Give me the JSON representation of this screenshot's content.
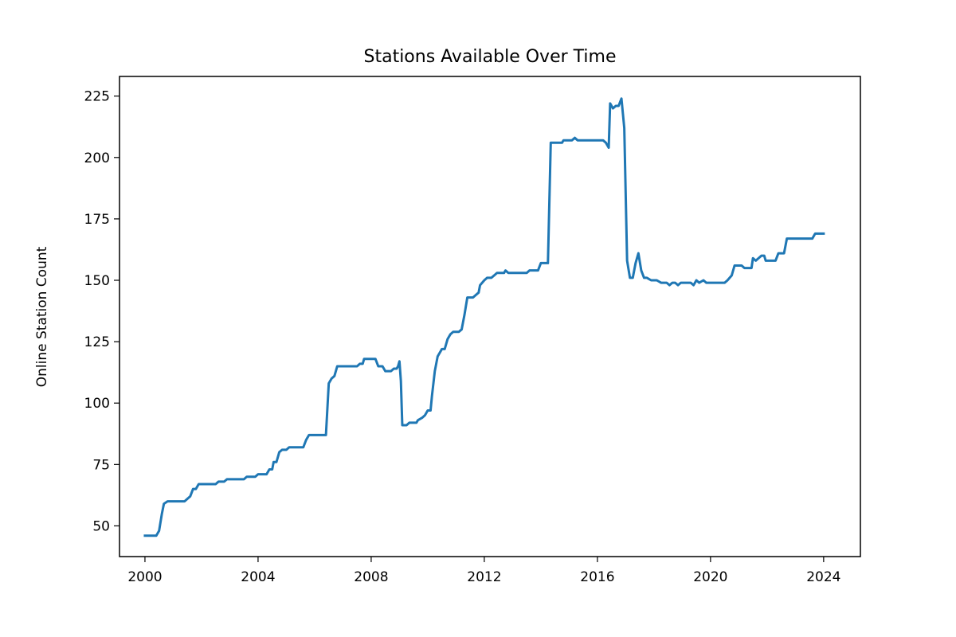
{
  "chart_data": {
    "type": "line",
    "title": "Stations Available Over Time",
    "xlabel": "",
    "ylabel": "Online Station Count",
    "xlim": [
      1999.1,
      2025.3
    ],
    "ylim": [
      37.5,
      233
    ],
    "x_ticks": [
      {
        "value": 2000,
        "label": "2000"
      },
      {
        "value": 2004,
        "label": "2004"
      },
      {
        "value": 2008,
        "label": "2008"
      },
      {
        "value": 2012,
        "label": "2012"
      },
      {
        "value": 2016,
        "label": "2016"
      },
      {
        "value": 2020,
        "label": "2020"
      },
      {
        "value": 2024,
        "label": "2024"
      }
    ],
    "y_ticks": [
      {
        "value": 50,
        "label": "50"
      },
      {
        "value": 75,
        "label": "75"
      },
      {
        "value": 100,
        "label": "100"
      },
      {
        "value": 125,
        "label": "125"
      },
      {
        "value": 150,
        "label": "150"
      },
      {
        "value": 175,
        "label": "175"
      },
      {
        "value": 200,
        "label": "200"
      },
      {
        "value": 225,
        "label": "225"
      }
    ],
    "grid": false,
    "series": [
      {
        "color": "#1f77b4",
        "points": [
          [
            2000.0,
            46
          ],
          [
            2000.4,
            46
          ],
          [
            2000.5,
            48
          ],
          [
            2000.6,
            55
          ],
          [
            2000.67,
            59
          ],
          [
            2000.8,
            60
          ],
          [
            2001.0,
            60
          ],
          [
            2001.3,
            60
          ],
          [
            2001.4,
            60
          ],
          [
            2001.5,
            61
          ],
          [
            2001.6,
            62
          ],
          [
            2001.7,
            65
          ],
          [
            2001.8,
            65
          ],
          [
            2001.9,
            67
          ],
          [
            2002.2,
            67
          ],
          [
            2002.5,
            67
          ],
          [
            2002.6,
            68
          ],
          [
            2002.8,
            68
          ],
          [
            2002.9,
            69
          ],
          [
            2003.2,
            69
          ],
          [
            2003.5,
            69
          ],
          [
            2003.6,
            70
          ],
          [
            2003.9,
            70
          ],
          [
            2004.0,
            71
          ],
          [
            2004.3,
            71
          ],
          [
            2004.4,
            73
          ],
          [
            2004.5,
            73
          ],
          [
            2004.55,
            76
          ],
          [
            2004.65,
            76
          ],
          [
            2004.75,
            80
          ],
          [
            2004.85,
            81
          ],
          [
            2005.0,
            81
          ],
          [
            2005.1,
            82
          ],
          [
            2005.3,
            82
          ],
          [
            2005.6,
            82
          ],
          [
            2005.7,
            85
          ],
          [
            2005.8,
            87
          ],
          [
            2006.0,
            87
          ],
          [
            2006.3,
            87
          ],
          [
            2006.4,
            87
          ],
          [
            2006.5,
            108
          ],
          [
            2006.6,
            110
          ],
          [
            2006.7,
            111
          ],
          [
            2006.8,
            115
          ],
          [
            2007.0,
            115
          ],
          [
            2007.3,
            115
          ],
          [
            2007.5,
            115
          ],
          [
            2007.6,
            116
          ],
          [
            2007.7,
            116
          ],
          [
            2007.75,
            118
          ],
          [
            2007.9,
            118
          ],
          [
            2008.0,
            118
          ],
          [
            2008.15,
            118
          ],
          [
            2008.25,
            115
          ],
          [
            2008.4,
            115
          ],
          [
            2008.5,
            113
          ],
          [
            2008.7,
            113
          ],
          [
            2008.8,
            114
          ],
          [
            2008.9,
            114
          ],
          [
            2008.95,
            115
          ],
          [
            2009.0,
            117
          ],
          [
            2009.05,
            109
          ],
          [
            2009.1,
            91
          ],
          [
            2009.25,
            91
          ],
          [
            2009.35,
            92
          ],
          [
            2009.5,
            92
          ],
          [
            2009.6,
            92
          ],
          [
            2009.65,
            93
          ],
          [
            2009.8,
            94
          ],
          [
            2009.9,
            95
          ],
          [
            2010.0,
            97
          ],
          [
            2010.1,
            97
          ],
          [
            2010.15,
            103
          ],
          [
            2010.25,
            113
          ],
          [
            2010.35,
            119
          ],
          [
            2010.45,
            121
          ],
          [
            2010.5,
            122
          ],
          [
            2010.6,
            122
          ],
          [
            2010.7,
            126
          ],
          [
            2010.8,
            128
          ],
          [
            2010.9,
            129
          ],
          [
            2011.1,
            129
          ],
          [
            2011.2,
            130
          ],
          [
            2011.3,
            136
          ],
          [
            2011.4,
            143
          ],
          [
            2011.5,
            143
          ],
          [
            2011.6,
            143
          ],
          [
            2011.7,
            144
          ],
          [
            2011.8,
            145
          ],
          [
            2011.85,
            148
          ],
          [
            2012.0,
            150
          ],
          [
            2012.1,
            151
          ],
          [
            2012.25,
            151
          ],
          [
            2012.35,
            152
          ],
          [
            2012.45,
            153
          ],
          [
            2012.6,
            153
          ],
          [
            2012.7,
            153
          ],
          [
            2012.75,
            154
          ],
          [
            2012.85,
            153
          ],
          [
            2013.0,
            153
          ],
          [
            2013.3,
            153
          ],
          [
            2013.5,
            153
          ],
          [
            2013.6,
            154
          ],
          [
            2013.9,
            154
          ],
          [
            2014.0,
            157
          ],
          [
            2014.25,
            157
          ],
          [
            2014.35,
            206
          ],
          [
            2014.6,
            206
          ],
          [
            2014.75,
            206
          ],
          [
            2014.8,
            207
          ],
          [
            2015.0,
            207
          ],
          [
            2015.1,
            207
          ],
          [
            2015.2,
            208
          ],
          [
            2015.3,
            207
          ],
          [
            2015.6,
            207
          ],
          [
            2015.8,
            207
          ],
          [
            2016.0,
            207
          ],
          [
            2016.2,
            207
          ],
          [
            2016.3,
            206
          ],
          [
            2016.4,
            204
          ],
          [
            2016.45,
            222
          ],
          [
            2016.55,
            220
          ],
          [
            2016.65,
            221
          ],
          [
            2016.75,
            221
          ],
          [
            2016.85,
            224
          ],
          [
            2016.95,
            212
          ],
          [
            2017.05,
            158
          ],
          [
            2017.15,
            151
          ],
          [
            2017.25,
            151
          ],
          [
            2017.35,
            157
          ],
          [
            2017.45,
            161
          ],
          [
            2017.55,
            154
          ],
          [
            2017.65,
            151
          ],
          [
            2017.75,
            151
          ],
          [
            2017.9,
            150
          ],
          [
            2018.1,
            150
          ],
          [
            2018.25,
            149
          ],
          [
            2018.45,
            149
          ],
          [
            2018.55,
            148
          ],
          [
            2018.65,
            149
          ],
          [
            2018.75,
            149
          ],
          [
            2018.85,
            148
          ],
          [
            2018.95,
            149
          ],
          [
            2019.1,
            149
          ],
          [
            2019.3,
            149
          ],
          [
            2019.4,
            148
          ],
          [
            2019.5,
            150
          ],
          [
            2019.6,
            149
          ],
          [
            2019.75,
            150
          ],
          [
            2019.85,
            149
          ],
          [
            2020.0,
            149
          ],
          [
            2020.2,
            149
          ],
          [
            2020.4,
            149
          ],
          [
            2020.5,
            149
          ],
          [
            2020.6,
            150
          ],
          [
            2020.75,
            152
          ],
          [
            2020.85,
            156
          ],
          [
            2021.0,
            156
          ],
          [
            2021.1,
            156
          ],
          [
            2021.2,
            155
          ],
          [
            2021.35,
            155
          ],
          [
            2021.45,
            155
          ],
          [
            2021.5,
            159
          ],
          [
            2021.6,
            158
          ],
          [
            2021.7,
            159
          ],
          [
            2021.8,
            160
          ],
          [
            2021.9,
            160
          ],
          [
            2021.95,
            158
          ],
          [
            2022.2,
            158
          ],
          [
            2022.3,
            158
          ],
          [
            2022.4,
            161
          ],
          [
            2022.55,
            161
          ],
          [
            2022.6,
            161
          ],
          [
            2022.7,
            167
          ],
          [
            2022.9,
            167
          ],
          [
            2023.2,
            167
          ],
          [
            2023.4,
            167
          ],
          [
            2023.6,
            167
          ],
          [
            2023.7,
            169
          ],
          [
            2023.8,
            169
          ],
          [
            2024.0,
            169
          ]
        ]
      }
    ]
  }
}
